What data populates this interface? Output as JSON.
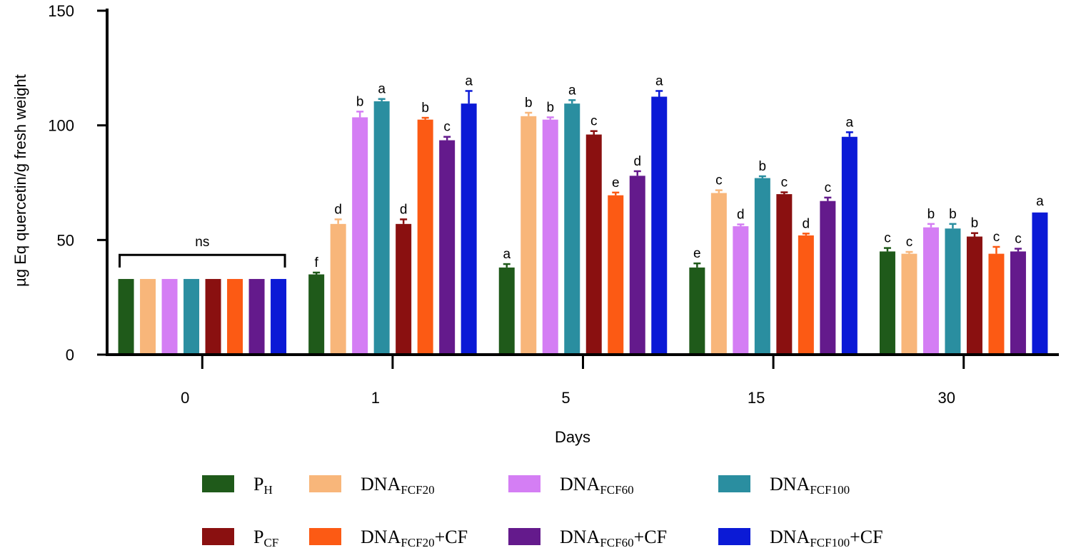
{
  "chart_data": {
    "type": "bar",
    "title": "",
    "xlabel": "Days",
    "ylabel": "µg Eq quercetin/g fresh weight",
    "ylim": [
      0,
      150
    ],
    "yticks": [
      "0",
      "50",
      "100",
      "150"
    ],
    "categories": [
      "0",
      "1",
      "5",
      "15",
      "30"
    ],
    "group_annotation": "ns",
    "series": [
      {
        "name": "PH",
        "label_main": "P",
        "label_sub": "H",
        "label_suffix": "",
        "color": "#1f5a1a",
        "values": [
          33,
          35,
          38,
          38,
          45
        ],
        "errors": [
          0.5,
          0.8,
          1.5,
          1.8,
          1.5
        ],
        "letters": [
          "",
          "f",
          "a",
          "e",
          "c"
        ]
      },
      {
        "name": "DNAFCF20",
        "label_main": "DNA",
        "label_sub": "FCF20",
        "label_suffix": "",
        "color": "#f8b67a",
        "values": [
          33,
          57,
          104,
          70.5,
          44
        ],
        "errors": [
          0.5,
          2,
          1.5,
          1.2,
          0.8
        ],
        "letters": [
          "",
          "d",
          "b",
          "c",
          "c"
        ]
      },
      {
        "name": "DNAFCF60",
        "label_main": "DNA",
        "label_sub": "FCF60",
        "label_suffix": "",
        "color": "#d47ef4",
        "values": [
          33,
          103.5,
          102.5,
          56,
          55.5
        ],
        "errors": [
          0.5,
          2.5,
          1,
          0.8,
          1.5
        ],
        "letters": [
          "",
          "b",
          "b",
          "d",
          "b"
        ]
      },
      {
        "name": "DNAFCF100",
        "label_main": "DNA",
        "label_sub": "FCF100",
        "label_suffix": "",
        "color": "#2a8ea0",
        "values": [
          33,
          110.5,
          109.5,
          77,
          55
        ],
        "errors": [
          0.5,
          1,
          1.5,
          0.8,
          2
        ],
        "letters": [
          "",
          "a",
          "a",
          "b",
          "b"
        ]
      },
      {
        "name": "PCF",
        "label_main": "P",
        "label_sub": "CF",
        "label_suffix": "",
        "color": "#8a1010",
        "values": [
          33,
          57,
          96,
          70,
          51.5
        ],
        "errors": [
          0.5,
          2,
          1.5,
          0.8,
          1.5
        ],
        "letters": [
          "",
          "d",
          "c",
          "c",
          "b"
        ]
      },
      {
        "name": "DNAFCF20+CF",
        "label_main": "DNA",
        "label_sub": "FCF20",
        "label_suffix": "+CF",
        "color": "#fc5a14",
        "values": [
          33,
          102.5,
          69.5,
          52,
          44
        ],
        "errors": [
          0.5,
          0.8,
          1.2,
          0.8,
          3
        ],
        "letters": [
          "",
          "b",
          "e",
          "d",
          "c"
        ]
      },
      {
        "name": "DNAFCF60+CF",
        "label_main": "DNA",
        "label_sub": "FCF60",
        "label_suffix": "+CF",
        "color": "#641a8c",
        "values": [
          33,
          93.5,
          78,
          67,
          45
        ],
        "errors": [
          0.5,
          1.5,
          2,
          1.5,
          1.2
        ],
        "letters": [
          "",
          "c",
          "d",
          "c",
          "c"
        ]
      },
      {
        "name": "DNAFCF100+CF",
        "label_main": "DNA",
        "label_sub": "FCF100",
        "label_suffix": "+CF",
        "color": "#0b1ad6",
        "values": [
          33,
          109.5,
          112.5,
          95,
          62
        ],
        "errors": [
          0.5,
          5.5,
          2.5,
          2,
          0.5
        ],
        "letters": [
          "",
          "a",
          "a",
          "a",
          "a"
        ]
      }
    ]
  }
}
